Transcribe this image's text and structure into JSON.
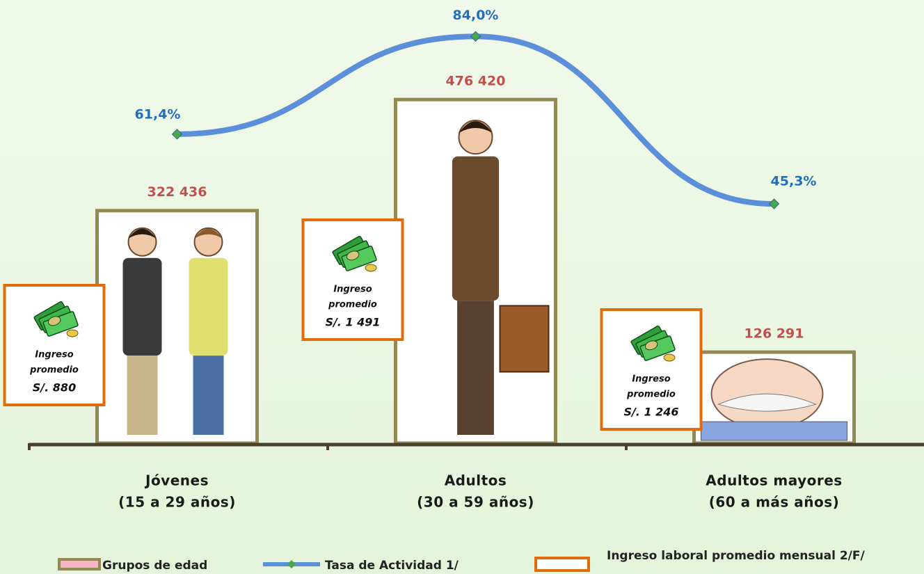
{
  "chart_data": {
    "type": "bar",
    "categories": [
      "Jóvenes",
      "Adultos",
      "Adultos mayores"
    ],
    "category_ranges": [
      "(15 a 29 años)",
      "(30 a 59 años)",
      "(60 a más años)"
    ],
    "ylim": [
      0,
      600000
    ],
    "y2lim": [
      -10,
      90
    ],
    "series": [
      {
        "name": "Grupos de edad",
        "type": "bar",
        "values": [
          322436,
          476420,
          126291
        ],
        "value_labels": [
          "322 436",
          "476 420",
          "126 291"
        ],
        "color": "#ffffff",
        "edge_color": "#938953",
        "label_color": "#c0504d",
        "legend_color": "#f4b6c2"
      },
      {
        "name": "Tasa de Actividad 1/",
        "type": "line",
        "axis": "y2",
        "values": [
          61.4,
          84.0,
          45.3
        ],
        "value_labels": [
          "61,4%",
          "84,0%",
          "45,3%"
        ],
        "color": "#5b8fd9",
        "marker_color": "#4aa84a",
        "label_color": "#1f6fbf"
      },
      {
        "name": "Ingreso laboral promedio mensual 2/F/",
        "type": "box",
        "values": [
          880,
          1491,
          1246
        ],
        "value_labels": [
          "S/. 880",
          "S/. 1 491",
          "S/. 1 246"
        ],
        "caption": [
          "Ingreso",
          "promedio"
        ],
        "color": "#e36c0a"
      }
    ]
  }
}
